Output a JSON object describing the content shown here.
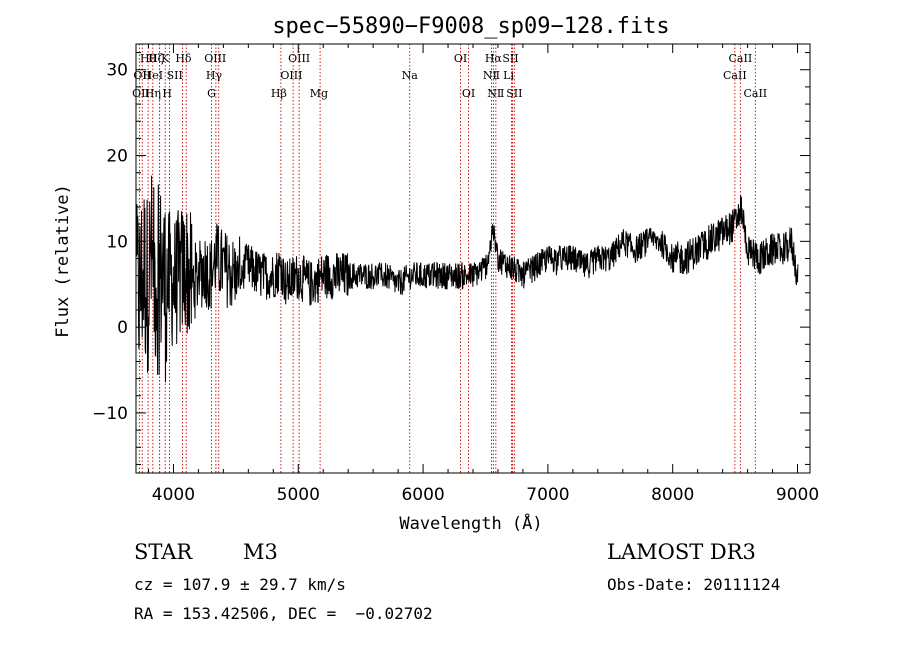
{
  "chart_data": {
    "type": "line",
    "title": "spec−55890−F9008_sp09−128.fits",
    "xlabel": "Wavelength (Å)",
    "ylabel": "Flux (relative)",
    "xlim": [
      3700,
      9100
    ],
    "ylim": [
      -17,
      33
    ],
    "x_ticks": [
      4000,
      5000,
      6000,
      7000,
      8000,
      9000
    ],
    "x_tick_labels": [
      "4000",
      "5000",
      "6000",
      "7000",
      "8000",
      "9000"
    ],
    "y_ticks": [
      -10,
      0,
      10,
      20,
      30
    ],
    "y_tick_labels": [
      "−10",
      "0",
      "10",
      "20",
      "30"
    ],
    "series": [
      {
        "name": "flux",
        "x": [
          3700,
          3730,
          3760,
          3790,
          3820,
          3850,
          3880,
          3910,
          3940,
          3970,
          4000,
          4050,
          4100,
          4150,
          4200,
          4250,
          4300,
          4340,
          4400,
          4500,
          4600,
          4700,
          4800,
          4862,
          4900,
          5000,
          5100,
          5200,
          5300,
          5400,
          5500,
          5600,
          5700,
          5800,
          5900,
          6000,
          6100,
          6200,
          6300,
          6400,
          6500,
          6563,
          6600,
          6700,
          6800,
          6900,
          7000,
          7100,
          7200,
          7300,
          7400,
          7500,
          7600,
          7700,
          7800,
          7900,
          8000,
          8100,
          8200,
          8300,
          8400,
          8500,
          8550,
          8600,
          8700,
          8800,
          8900,
          8950,
          9000
        ],
        "values": [
          5,
          4,
          7,
          5,
          8,
          6,
          5,
          7,
          4,
          6,
          5,
          6,
          7,
          5,
          6,
          7,
          6,
          8,
          7,
          6,
          7,
          6,
          6,
          7,
          5,
          6,
          5,
          6,
          6,
          6,
          6,
          6,
          6,
          5,
          6,
          6,
          6,
          6,
          6,
          6,
          7,
          11,
          8,
          7,
          6,
          7,
          8,
          8,
          8,
          7,
          8,
          8,
          10,
          9,
          10,
          10,
          8,
          8,
          9,
          10,
          11,
          12,
          14,
          9,
          8,
          9,
          9,
          10,
          6
        ]
      }
    ],
    "lines": [
      {
        "name": "OII",
        "x": 3727,
        "row": 2,
        "lx": 3740
      },
      {
        "name": "Hθ",
        "x": 3797,
        "row": 0,
        "lx": 3797
      },
      {
        "name": "OII",
        "x": 3750,
        "row": 1,
        "lx": 3750
      },
      {
        "name": "Hη",
        "x": 3835,
        "row": 2,
        "lx": 3835
      },
      {
        "name": "HeI",
        "x": 3889,
        "row": 1,
        "lx": 3835
      },
      {
        "name": "Hζ",
        "x": 3889,
        "row": 0,
        "lx": 3859
      },
      {
        "name": "K",
        "x": 3934,
        "row": 0,
        "lx": 3934
      },
      {
        "name": "H",
        "x": 3969,
        "row": 2,
        "lx": 3950
      },
      {
        "name": "SII",
        "x": 4072,
        "row": 1,
        "lx": 4010
      },
      {
        "name": "Hδ",
        "x": 4102,
        "row": 0,
        "lx": 4080
      },
      {
        "name": "G",
        "x": 4305,
        "row": 2,
        "lx": 4305
      },
      {
        "name": "OIII",
        "x": 4363,
        "row": 0,
        "lx": 4335
      },
      {
        "name": "Hγ",
        "x": 4340,
        "row": 1,
        "lx": 4325
      },
      {
        "name": "Hβ",
        "x": 4861,
        "row": 2,
        "lx": 4845
      },
      {
        "name": "OIII",
        "x": 4959,
        "row": 1,
        "lx": 4945
      },
      {
        "name": "OIII",
        "x": 5007,
        "row": 0,
        "lx": 5007
      },
      {
        "name": "Mg",
        "x": 5175,
        "row": 2,
        "lx": 5165
      },
      {
        "name": "Na",
        "x": 5893,
        "row": 1,
        "lx": 5893
      },
      {
        "name": "OI",
        "x": 6300,
        "row": 0,
        "lx": 6300
      },
      {
        "name": "OI",
        "x": 6364,
        "row": 2,
        "lx": 6364
      },
      {
        "name": "NⅡ",
        "x": 6548,
        "row": 1,
        "lx": 6548
      },
      {
        "name": "Hα",
        "x": 6563,
        "row": 0,
        "lx": 6563
      },
      {
        "name": "NⅡ",
        "x": 6583,
        "row": 2,
        "lx": 6583
      },
      {
        "name": "SII",
        "x": 6717,
        "row": 0,
        "lx": 6700
      },
      {
        "name": "Li",
        "x": 6708,
        "row": 1,
        "lx": 6685
      },
      {
        "name": "SII",
        "x": 6731,
        "row": 2,
        "lx": 6731
      },
      {
        "name": "CaII",
        "x": 8498,
        "row": 1,
        "lx": 8498
      },
      {
        "name": "CaII",
        "x": 8542,
        "row": 0,
        "lx": 8542
      },
      {
        "name": "CaII",
        "x": 8662,
        "row": 2,
        "lx": 8662
      }
    ]
  },
  "info": {
    "object_class": "STAR",
    "subclass": "M3",
    "survey": "LAMOST DR3",
    "cz": "cz = 107.9 ± 29.7 km/s",
    "obs_date": "Obs-Date: 20111124",
    "coords": "RA = 153.42506, DEC =  −0.02702"
  },
  "colors": {
    "line_marker": "#cc0000",
    "trace": "#000000",
    "axis": "#000000"
  }
}
